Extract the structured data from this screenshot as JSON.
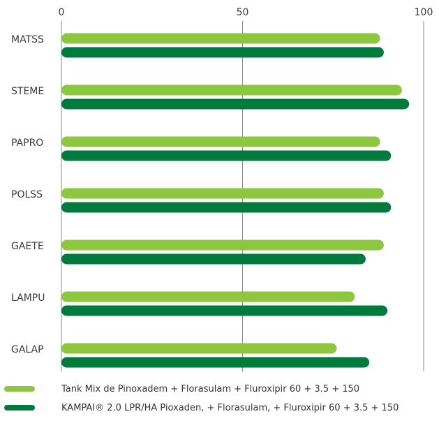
{
  "chart_data": {
    "type": "bar",
    "orientation": "horizontal",
    "categories": [
      "MATSS",
      "STEME",
      "PAPRO",
      "POLSS",
      "GAETE",
      "LAMPU",
      "GALAP"
    ],
    "series": [
      {
        "name": "Tank Mix de Pinoxadem + Florasulam + Fluroxipir 60 + 3.5 + 150",
        "color": "#8dc63f",
        "values": [
          88,
          94,
          88,
          89,
          89,
          81,
          76
        ]
      },
      {
        "name": "KAMPAI® 2.0 LPR/HA Pioxaden, + Florasulam, + Fluroxipir 60 + 3.5 + 150",
        "color": "#007a3d",
        "values": [
          89,
          96,
          91,
          91,
          84,
          90,
          85
        ]
      }
    ],
    "x_ticks": [
      "0",
      "50",
      "100"
    ],
    "xlim": [
      0,
      100
    ],
    "grid": true,
    "legend_position": "bottom"
  }
}
